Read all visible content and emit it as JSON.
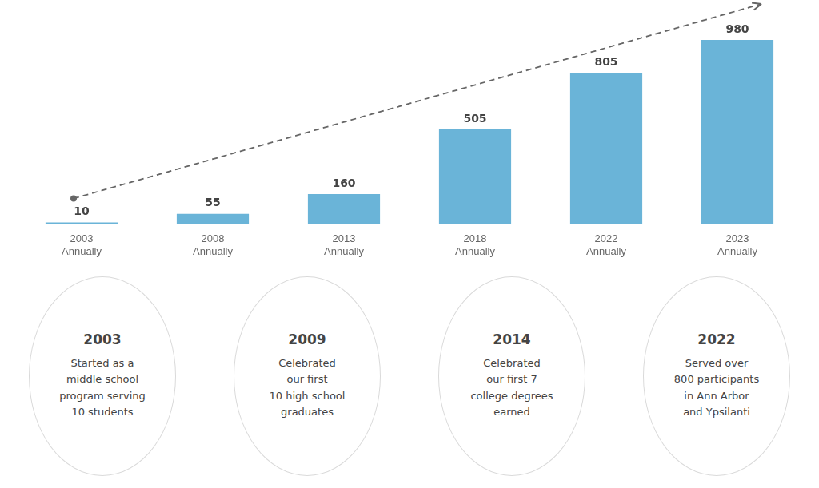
{
  "chart_data": {
    "type": "bar",
    "categories": [
      "2003",
      "2008",
      "2013",
      "2018",
      "2022",
      "2023"
    ],
    "values": [
      10,
      55,
      160,
      505,
      805,
      980
    ],
    "color": "#6ab4d8",
    "ylim": [
      0,
      1150
    ],
    "data_labels": true,
    "grid": false,
    "tick_labels": "x",
    "annotations": [
      "Annually",
      "2003",
      "Started as a\nmiddle school\nprogram serving\n10 students",
      "2009",
      "Celebrated\nour first\n10 high school\ngraduates",
      "2014",
      "Celebrated\nour first 7\ncollege degrees\nearned",
      "2022",
      "Served over\n800 participants\nin Ann Arbor\nand Ypsilanti"
    ]
  }
}
